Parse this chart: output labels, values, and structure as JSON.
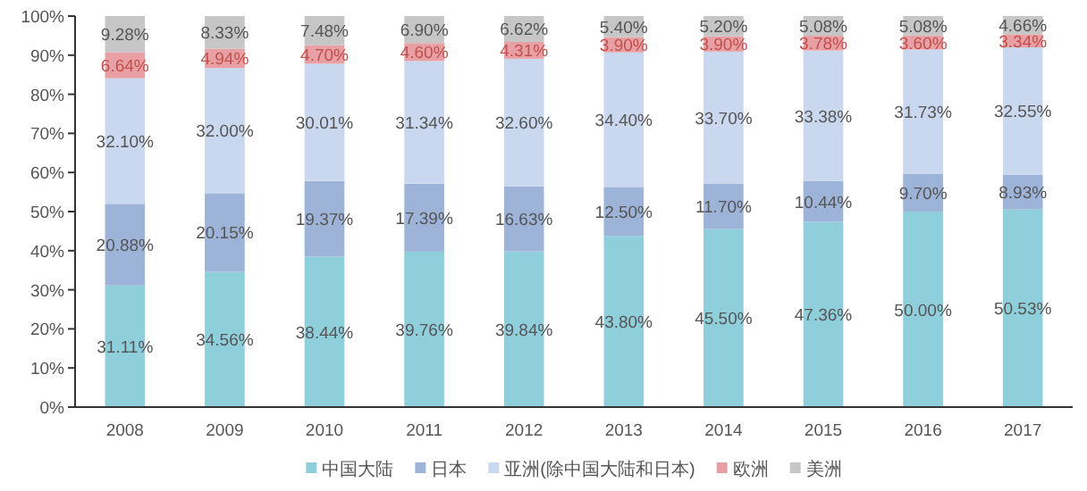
{
  "chart_data": {
    "type": "bar",
    "stacked": true,
    "categories": [
      "2008",
      "2009",
      "2010",
      "2011",
      "2012",
      "2013",
      "2014",
      "2015",
      "2016",
      "2017"
    ],
    "series": [
      {
        "name": "中国大陆",
        "color": "#8fcfdc",
        "values": [
          31.11,
          34.56,
          38.44,
          39.76,
          39.84,
          43.8,
          45.5,
          47.36,
          50,
          50.53
        ],
        "value_labels": [
          "31.11%",
          "34.56%",
          "38.44%",
          "39.76%",
          "39.84%",
          "43.80%",
          "45.50%",
          "47.36%",
          "50.00%",
          "50.53%"
        ]
      },
      {
        "name": "日本",
        "color": "#9db4d8",
        "values": [
          20.88,
          20.15,
          19.37,
          17.39,
          16.63,
          12.5,
          11.7,
          10.44,
          9.7,
          8.93
        ],
        "value_labels": [
          "20.88%",
          "20.15%",
          "19.37%",
          "17.39%",
          "16.63%",
          "12.50%",
          "11.70%",
          "10.44%",
          "9.70%",
          "8.93%"
        ]
      },
      {
        "name": "亚洲(除中国大陆和日本)",
        "color": "#c9d8ee",
        "values": [
          32.1,
          32,
          30.01,
          31.34,
          32.6,
          34.4,
          33.7,
          33.38,
          31.73,
          32.55
        ],
        "value_labels": [
          "32.10%",
          "32.00%",
          "30.01%",
          "31.34%",
          "32.60%",
          "34.40%",
          "33.70%",
          "33.38%",
          "31.73%",
          "32.55%"
        ]
      },
      {
        "name": "欧洲",
        "color": "#e8a0a4",
        "values": [
          6.64,
          4.94,
          4.7,
          4.6,
          4.31,
          3.9,
          3.9,
          3.78,
          3.6,
          3.34
        ],
        "value_labels": [
          "6.64%",
          "4.94%",
          "4.70%",
          "4.60%",
          "4.31%",
          "3.90%",
          "3.90%",
          "3.78%",
          "3.60%",
          "3.34%"
        ]
      },
      {
        "name": "美洲",
        "color": "#c6c6c6",
        "values": [
          9.28,
          8.33,
          7.48,
          6.9,
          6.62,
          5.4,
          5.2,
          5.08,
          5.08,
          4.66
        ],
        "value_labels": [
          "9.28%",
          "8.33%",
          "7.48%",
          "6.90%",
          "6.62%",
          "5.40%",
          "5.20%",
          "5.08%",
          "5.08%",
          "4.66%"
        ]
      }
    ],
    "ylim": [
      0,
      100
    ],
    "yticks": [
      {
        "value": 0,
        "label": "0%"
      },
      {
        "value": 10,
        "label": "10%"
      },
      {
        "value": 20,
        "label": "20%"
      },
      {
        "value": 30,
        "label": "30%"
      },
      {
        "value": 40,
        "label": "40%"
      },
      {
        "value": 50,
        "label": "50%"
      },
      {
        "value": 60,
        "label": "60%"
      },
      {
        "value": 70,
        "label": "70%"
      },
      {
        "value": 80,
        "label": "80%"
      },
      {
        "value": 90,
        "label": "90%"
      },
      {
        "value": 100,
        "label": "100%"
      }
    ],
    "grid": false,
    "legend": "bottom"
  }
}
